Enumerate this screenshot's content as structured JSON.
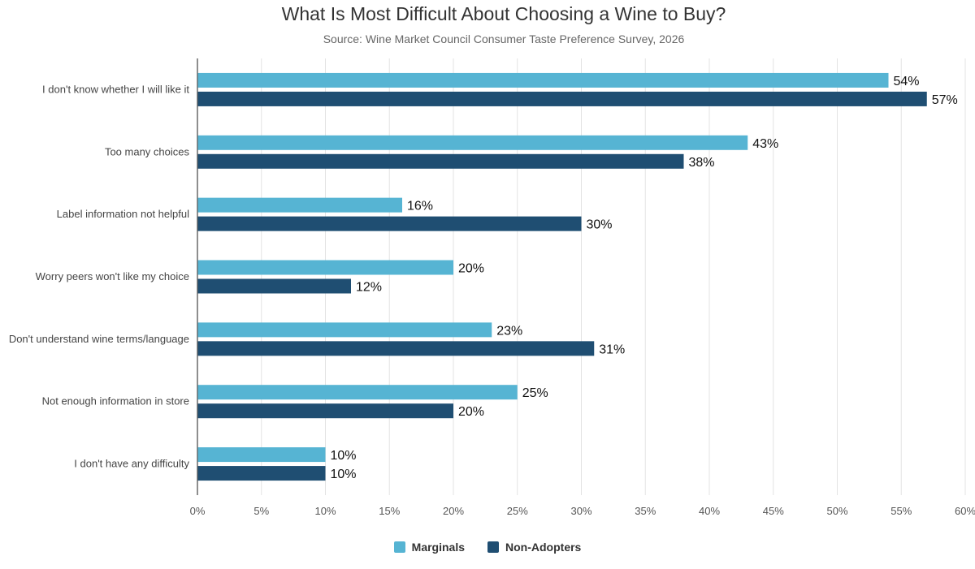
{
  "chart_data": {
    "type": "bar",
    "orientation": "horizontal",
    "title": "What Is Most Difficult About Choosing a Wine to Buy?",
    "subtitle": "Source: Wine Market Council Consumer Taste Preference Survey, 2026",
    "categories": [
      "I don't know whether I will like it",
      "Too many choices",
      "Label information not helpful",
      "Worry peers won't like my choice",
      "Don't understand wine terms/language",
      "Not enough information in store",
      "I don't have any difficulty"
    ],
    "series": [
      {
        "name": "Marginals",
        "color": "#56b4d3",
        "values": [
          54,
          43,
          16,
          20,
          23,
          25,
          10
        ]
      },
      {
        "name": "Non-Adopters",
        "color": "#1f4e72",
        "values": [
          57,
          38,
          30,
          12,
          31,
          20,
          10
        ]
      }
    ],
    "xlim": [
      0,
      60
    ],
    "x_ticks": [
      0,
      5,
      10,
      15,
      20,
      25,
      30,
      35,
      40,
      45,
      50,
      55,
      60
    ],
    "tick_suffix": "%",
    "grid": true,
    "legend": "bottom-center"
  }
}
